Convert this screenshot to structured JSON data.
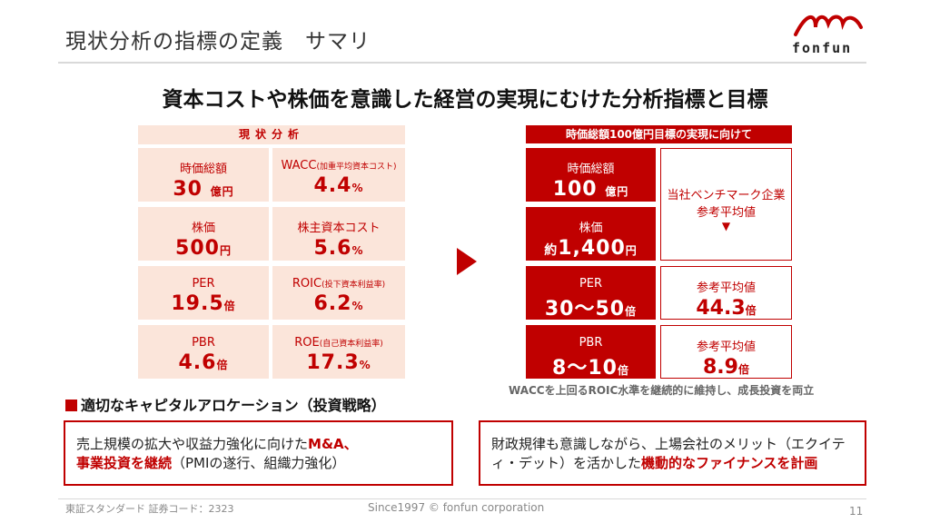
{
  "header": {
    "title": "現状分析の指標の定義　サマリ",
    "logo_text": "fonfun"
  },
  "headline": "資本コストや株価を意識した経営の実現にむけた分析指標と目標",
  "current": {
    "header": "現状分析",
    "cells": [
      {
        "label": "時価総額",
        "label_small": "",
        "value": "30",
        "unit": "億円"
      },
      {
        "label": "WACC",
        "label_small": "(加重平均資本コスト)",
        "value": "4.4",
        "unit": "%"
      },
      {
        "label": "株価",
        "label_small": "",
        "value": "500",
        "unit": "円"
      },
      {
        "label": "株主資本コスト",
        "label_small": "",
        "value": "5.6",
        "unit": "%"
      },
      {
        "label": "PER",
        "label_small": "",
        "value": "19.5",
        "unit": "倍"
      },
      {
        "label": "ROIC",
        "label_small": "(投下資本利益率)",
        "value": "6.2",
        "unit": "%"
      },
      {
        "label": "PBR",
        "label_small": "",
        "value": "4.6",
        "unit": "倍"
      },
      {
        "label": "ROE",
        "label_small": "(自己資本利益率)",
        "value": "17.3",
        "unit": "%"
      }
    ]
  },
  "target": {
    "header": "時価総額100億円目標の実現に向けて",
    "cells": [
      {
        "label": "時価総額",
        "prefix": "",
        "value": "100",
        "unit": "億円"
      },
      {
        "label": "株価",
        "prefix": "約",
        "value": "1,400",
        "unit": "円"
      },
      {
        "label": "PER",
        "prefix": "",
        "value": "30～50",
        "unit": "倍"
      },
      {
        "label": "PBR",
        "prefix": "",
        "value": "8～10",
        "unit": "倍"
      }
    ],
    "benchmark": {
      "label_line1": "当社ベンチマーク企業",
      "label_line2": "参考平均値",
      "arrow": "▼"
    },
    "refs": [
      {
        "label": "参考平均値",
        "value": "44.3",
        "unit": "倍"
      },
      {
        "label": "参考平均値",
        "value": "8.9",
        "unit": "倍"
      }
    ],
    "note": "WACCを上回るROIC水準を継続的に維持し、成長投資を両立"
  },
  "allocation": {
    "title": "適切なキャピタルアロケーション（投資戦略）",
    "box1": {
      "text1": "売上規模の拡大や収益力強化に向けた",
      "red1": "M&A、",
      "red2": "事業投資を継続",
      "text2": "（PMIの遂行、組織力強化）"
    },
    "box2": {
      "text1": "財政規律も意識しながら、上場会社のメリット（エクイティ・デット）を活かした",
      "red1": "機動的なファイナンスを計画"
    }
  },
  "footer": {
    "left": "東証スタンダード 証券コード：2323",
    "center": "Since1997 © fonfun corporation",
    "page": "11"
  },
  "colors": {
    "accent": "#c00000",
    "light": "#fbe5da"
  }
}
